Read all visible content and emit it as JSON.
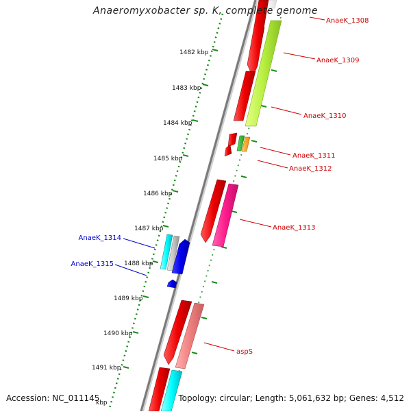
{
  "title": "Anaeromyxobacter sp. K, complete genome",
  "accession": "Accession: NC_011145",
  "topology": "Topology: circular; Length: 5,061,632 bp; Genes: 4,512",
  "colors": {
    "backbone": "#8a8a8a",
    "kbp_ticks": "#1a8a1a",
    "gene_label_forward": "#cc0000",
    "gene_label_reverse": "#0000cc"
  },
  "kbp_labels": [
    "1482 kbp",
    "1483 kbp",
    "1484 kbp",
    "1485 kbp",
    "1486 kbp",
    "1487 kbp",
    "1488 kbp",
    "1489 kbp",
    "1490 kbp",
    "1491 kbp",
    "kbp"
  ],
  "gene_labels": [
    {
      "text": "AnaeK_1308",
      "strand": "forward"
    },
    {
      "text": "AnaeK_1309",
      "strand": "forward"
    },
    {
      "text": "AnaeK_1310",
      "strand": "forward"
    },
    {
      "text": "AnaeK_1311",
      "strand": "forward"
    },
    {
      "text": "AnaeK_1312",
      "strand": "forward"
    },
    {
      "text": "AnaeK_1313",
      "strand": "forward"
    },
    {
      "text": "AnaeK_1314",
      "strand": "reverse"
    },
    {
      "text": "AnaeK_1315",
      "strand": "reverse"
    },
    {
      "text": "aspS",
      "strand": "forward"
    }
  ]
}
